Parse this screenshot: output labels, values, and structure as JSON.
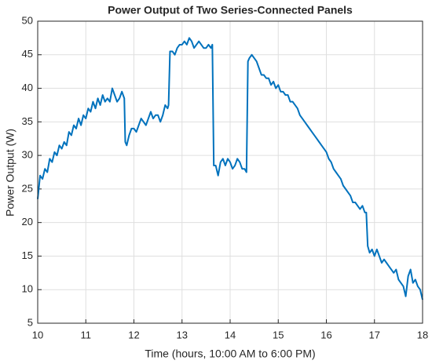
{
  "chart_data": {
    "type": "line",
    "title": "Power Output of Two Series-Connected Panels",
    "xlabel": "Time (hours, 10:00 AM to 6:00 PM)",
    "ylabel": "Power Output (W)",
    "x": [
      10.0,
      10.05,
      10.1,
      10.15,
      10.2,
      10.25,
      10.3,
      10.35,
      10.4,
      10.45,
      10.5,
      10.55,
      10.6,
      10.65,
      10.7,
      10.75,
      10.8,
      10.85,
      10.9,
      10.95,
      11.0,
      11.05,
      11.1,
      11.15,
      11.2,
      11.25,
      11.3,
      11.35,
      11.4,
      11.45,
      11.5,
      11.55,
      11.6,
      11.65,
      11.7,
      11.75,
      11.8,
      11.82,
      11.85,
      11.9,
      11.95,
      12.0,
      12.05,
      12.1,
      12.15,
      12.2,
      12.25,
      12.3,
      12.35,
      12.4,
      12.45,
      12.5,
      12.55,
      12.6,
      12.65,
      12.7,
      12.72,
      12.75,
      12.8,
      12.85,
      12.9,
      12.95,
      13.0,
      13.05,
      13.1,
      13.15,
      13.2,
      13.25,
      13.3,
      13.35,
      13.4,
      13.45,
      13.5,
      13.55,
      13.6,
      13.63,
      13.66,
      13.7,
      13.75,
      13.8,
      13.85,
      13.9,
      13.95,
      14.0,
      14.05,
      14.1,
      14.15,
      14.2,
      14.25,
      14.3,
      14.34,
      14.37,
      14.4,
      14.45,
      14.5,
      14.55,
      14.6,
      14.65,
      14.7,
      14.75,
      14.8,
      14.85,
      14.9,
      14.95,
      15.0,
      15.05,
      15.1,
      15.15,
      15.2,
      15.25,
      15.3,
      15.35,
      15.4,
      15.45,
      15.5,
      15.55,
      15.6,
      15.65,
      15.7,
      15.75,
      15.8,
      15.85,
      15.9,
      15.95,
      16.0,
      16.05,
      16.1,
      16.15,
      16.2,
      16.25,
      16.3,
      16.35,
      16.4,
      16.45,
      16.5,
      16.55,
      16.6,
      16.65,
      16.7,
      16.75,
      16.8,
      16.83,
      16.86,
      16.9,
      16.95,
      17.0,
      17.05,
      17.1,
      17.15,
      17.2,
      17.25,
      17.3,
      17.35,
      17.4,
      17.45,
      17.5,
      17.55,
      17.6,
      17.65,
      17.7,
      17.75,
      17.8,
      17.85,
      17.9,
      17.95,
      18.0
    ],
    "values": [
      23.5,
      27,
      26.5,
      28,
      27.5,
      29.5,
      29,
      30.5,
      30,
      31.5,
      31,
      32,
      31.5,
      33.5,
      33,
      34.5,
      34,
      35.5,
      34.5,
      36,
      35.5,
      37,
      36.5,
      38,
      37,
      38.5,
      37.5,
      39,
      38,
      38.5,
      38,
      40,
      39,
      38,
      38.5,
      39.5,
      38.5,
      32,
      31.5,
      33,
      34,
      34,
      33.5,
      34.5,
      35.5,
      35,
      34.5,
      35.5,
      36.5,
      35.5,
      36,
      36,
      35,
      36,
      37.5,
      37,
      37.5,
      45.5,
      45.5,
      45,
      46,
      46.5,
      46.5,
      47,
      46.5,
      47.5,
      47,
      46,
      46.5,
      47,
      46.5,
      46,
      46,
      46.5,
      46,
      46.5,
      28.5,
      28.5,
      27,
      29,
      29.5,
      28.5,
      29.5,
      29,
      28,
      28.5,
      29.5,
      29,
      28,
      28,
      27.5,
      44,
      44.5,
      45,
      44.5,
      44,
      43,
      42,
      42,
      41.5,
      41.5,
      40.5,
      41,
      40,
      40.5,
      39.5,
      39.5,
      39,
      39,
      38,
      38,
      37.5,
      37,
      36,
      35.5,
      35,
      34.5,
      34,
      33.5,
      33,
      32.5,
      32,
      31.5,
      31,
      30.5,
      29.5,
      29,
      28,
      27.5,
      27,
      26.5,
      25.5,
      25,
      24.5,
      24,
      23,
      23,
      22.5,
      22,
      22.5,
      21.5,
      21.5,
      16.5,
      15.5,
      16,
      15,
      16,
      15,
      14,
      14.5,
      14,
      13.5,
      13,
      12.5,
      13,
      11.5,
      11,
      10.5,
      9,
      12,
      13,
      11,
      11.5,
      10.5,
      10,
      8.5
    ],
    "color": "#0072bd",
    "xlim": [
      10,
      18
    ],
    "xticks": [
      10,
      11,
      12,
      13,
      14,
      15,
      16,
      17,
      18
    ],
    "ylim": [
      5,
      50
    ],
    "yticks": [
      5,
      10,
      15,
      20,
      25,
      30,
      35,
      40,
      45,
      50
    ],
    "grid": true
  }
}
